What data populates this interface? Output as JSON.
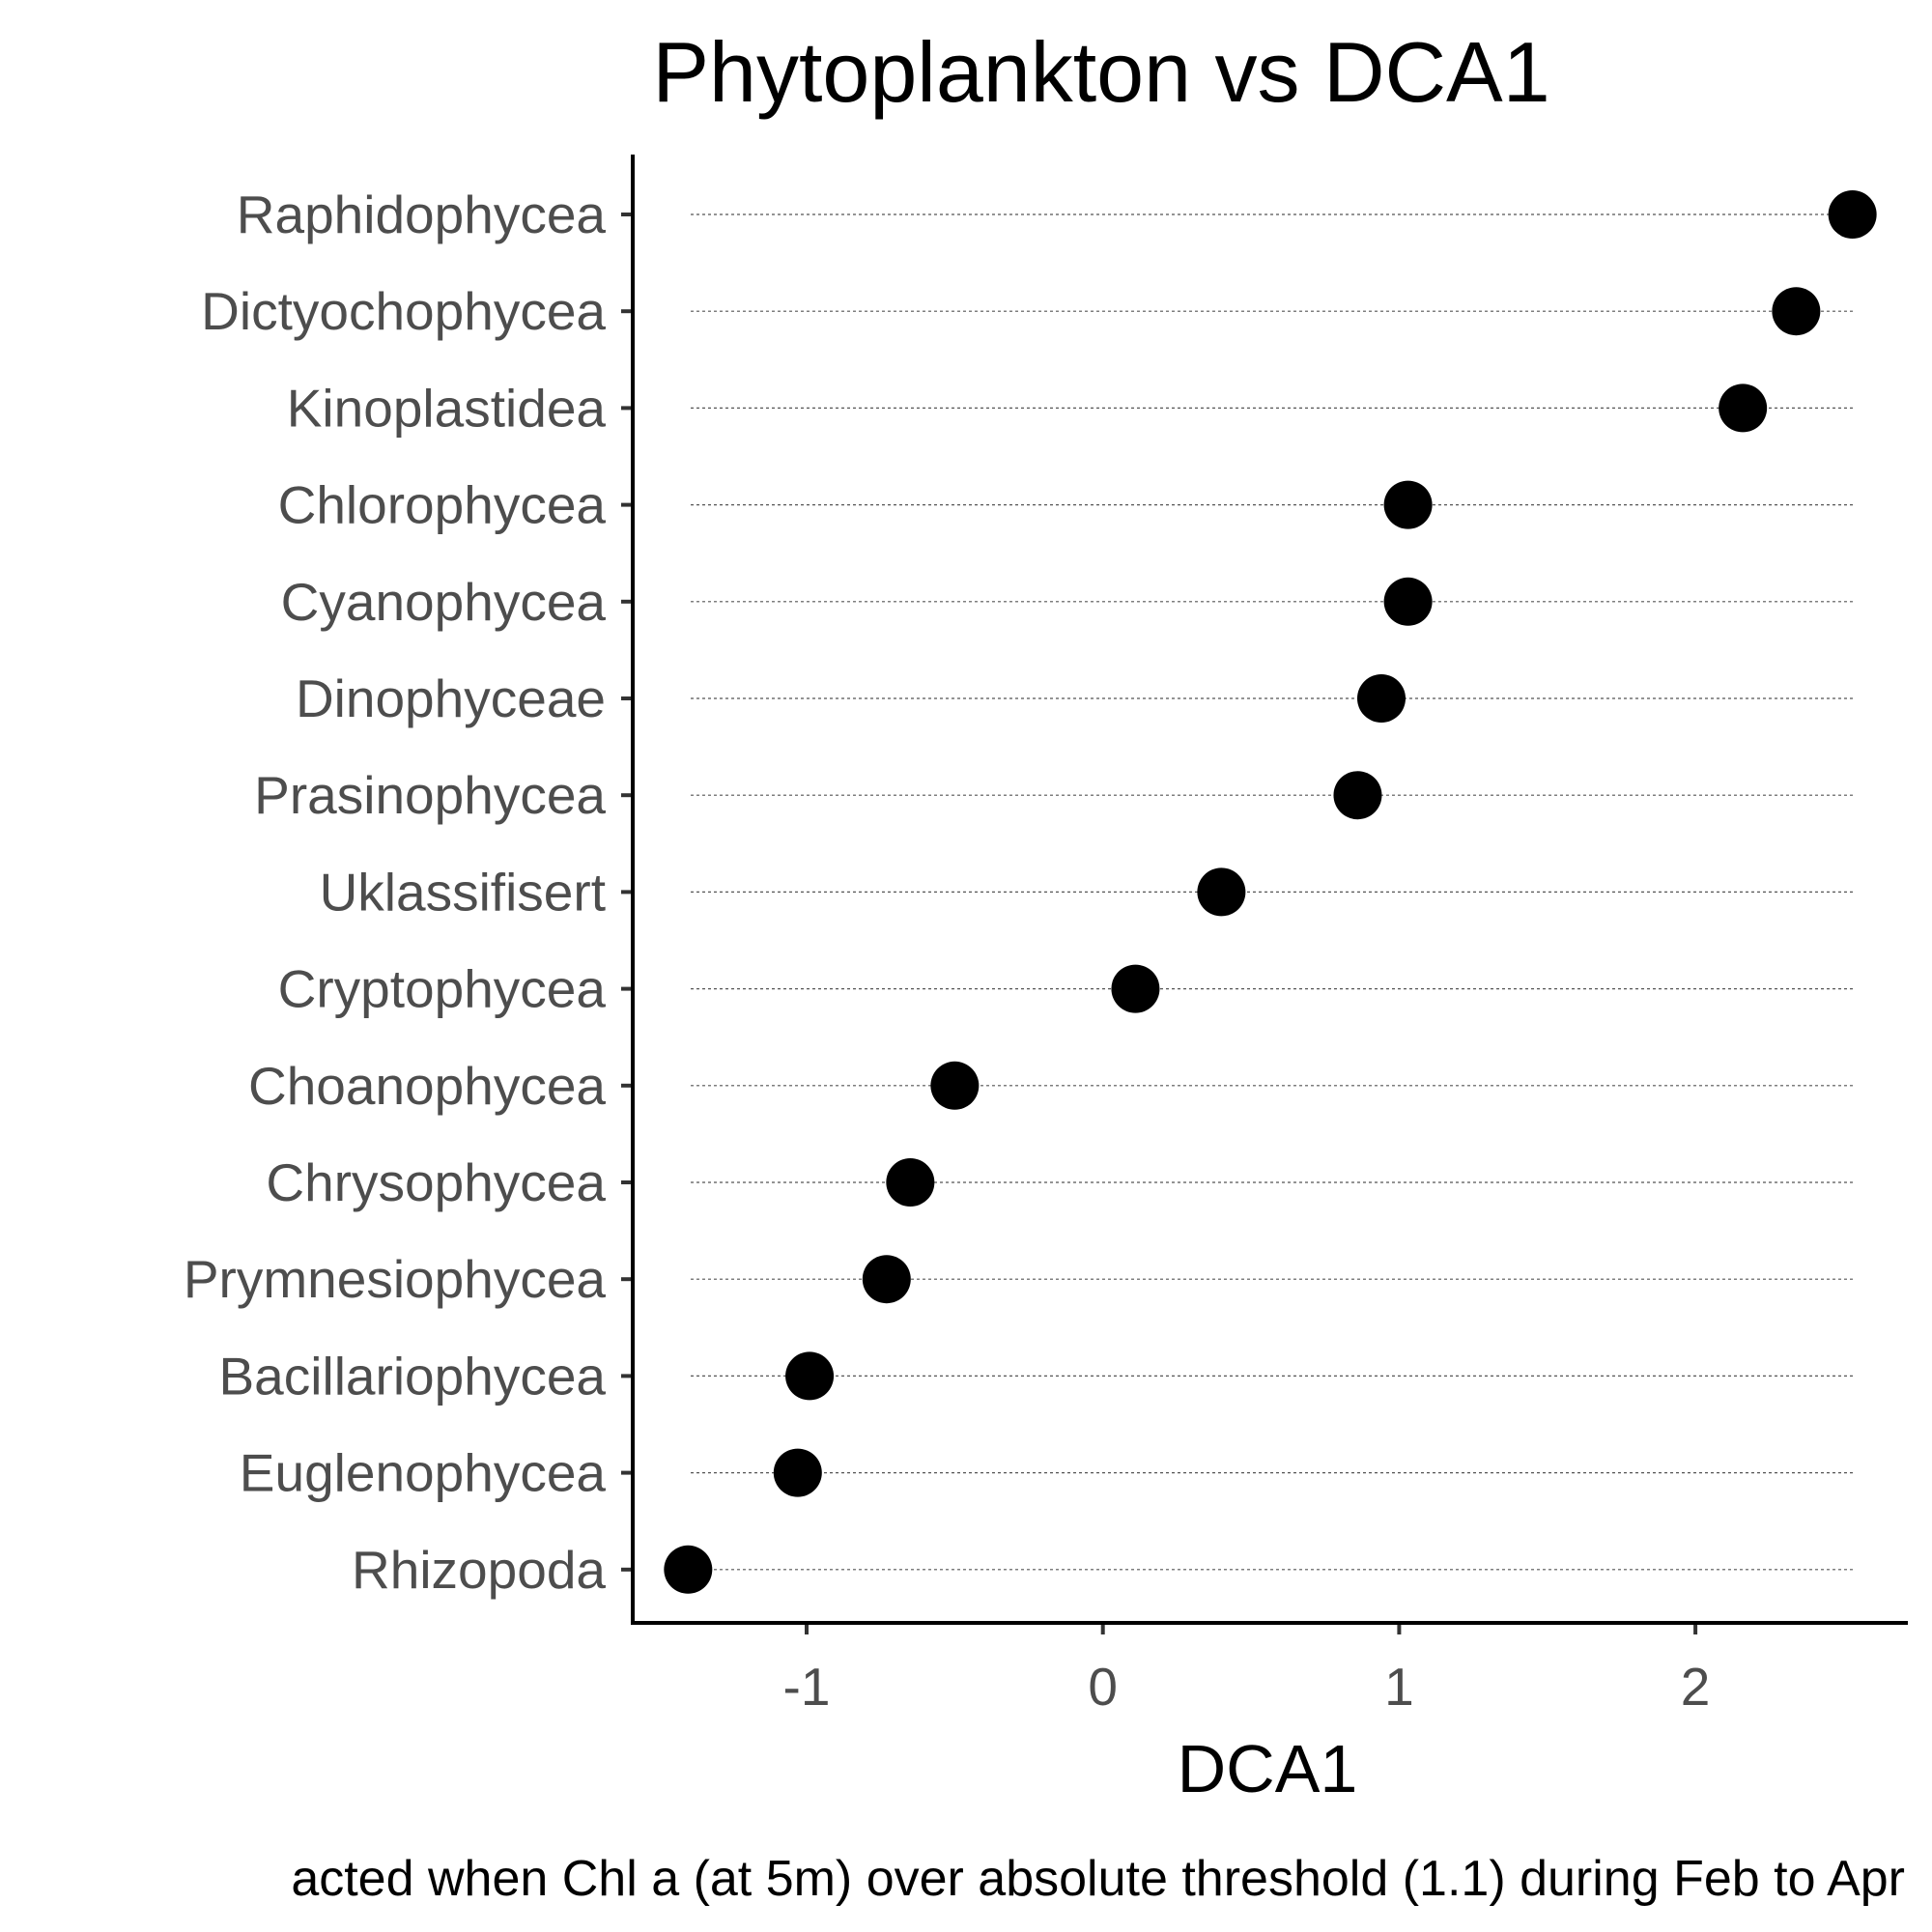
{
  "chart_data": {
    "type": "scatter",
    "title": "Phytoplankton vs DCA1",
    "xlabel": "DCA1",
    "ylabel": "",
    "caption": "acted when Chl a (at 5m) over absolute threshold (1.1) during Feb to Apr",
    "xlim": [
      -1.6,
      2.7
    ],
    "xticks": [
      -1,
      0,
      1,
      2
    ],
    "xtick_labels": [
      "-1",
      "0",
      "1",
      "2"
    ],
    "grid": "dotted horizontal guide lines per category",
    "legend": "none",
    "point_color": "#000000",
    "categories": [
      "Raphidophycea",
      "Dictyochophycea",
      "Kinoplastidea",
      "Chlorophycea",
      "Cyanophycea",
      "Dinophyceae",
      "Prasinophycea",
      "Uklassifisert",
      "Cryptophycea",
      "Choanophycea",
      "Chrysophycea",
      "Prymnesiophycea",
      "Bacillariophycea",
      "Euglenophycea",
      "Rhizopoda"
    ],
    "values": [
      2.53,
      2.34,
      2.16,
      1.03,
      1.03,
      0.94,
      0.86,
      0.4,
      0.11,
      -0.5,
      -0.65,
      -0.73,
      -0.99,
      -1.03,
      -1.4
    ]
  }
}
